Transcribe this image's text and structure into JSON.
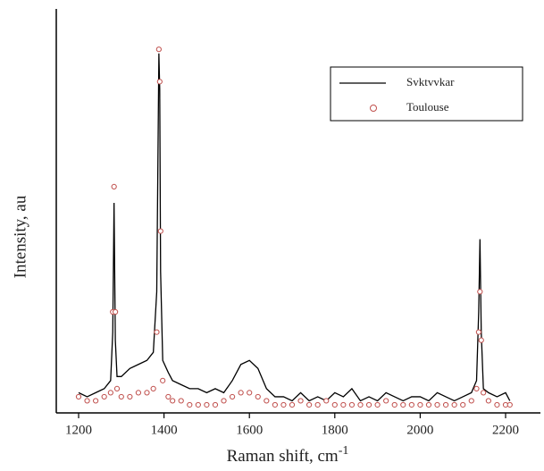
{
  "chart_data": {
    "type": "line_scatter",
    "x_label": "Raman shift, cm",
    "x_label_sup": "-1",
    "y_label": "Intensity, au",
    "x": [
      1200,
      1220,
      1240,
      1260,
      1275,
      1280,
      1283,
      1286,
      1290,
      1300,
      1320,
      1340,
      1360,
      1375,
      1383,
      1388,
      1390,
      1392,
      1397,
      1410,
      1420,
      1440,
      1460,
      1480,
      1500,
      1520,
      1540,
      1560,
      1580,
      1600,
      1620,
      1640,
      1660,
      1680,
      1700,
      1720,
      1740,
      1760,
      1780,
      1800,
      1820,
      1840,
      1860,
      1880,
      1900,
      1920,
      1940,
      1960,
      1980,
      2000,
      2020,
      2040,
      2060,
      2080,
      2100,
      2120,
      2132,
      2137,
      2140,
      2143,
      2148,
      2160,
      2180,
      2200,
      2210
    ],
    "series": [
      {
        "name": "Svktvvkar",
        "kind": "line",
        "color": "#000000",
        "values": [
          5,
          4,
          5,
          6,
          8,
          20,
          52,
          18,
          9,
          9,
          11,
          12,
          13,
          15,
          30,
          89,
          80,
          35,
          13,
          10,
          8,
          7,
          6,
          6,
          5,
          6,
          5,
          8,
          12,
          13,
          11,
          6,
          4,
          4,
          3,
          5,
          3,
          4,
          3,
          5,
          4,
          6,
          3,
          4,
          3,
          5,
          4,
          3,
          4,
          4,
          3,
          5,
          4,
          3,
          4,
          5,
          8,
          25,
          43,
          20,
          6,
          5,
          4,
          5,
          3
        ]
      },
      {
        "name": "Toulouse",
        "kind": "scatter",
        "color": "#c0504d",
        "values": [
          4,
          3,
          3,
          4,
          5,
          25,
          56,
          25,
          6,
          4,
          4,
          5,
          5,
          6,
          20,
          90,
          82,
          45,
          8,
          4,
          3,
          3,
          2,
          2,
          2,
          2,
          3,
          4,
          5,
          5,
          4,
          3,
          2,
          2,
          2,
          3,
          2,
          2,
          3,
          2,
          2,
          2,
          2,
          2,
          2,
          3,
          2,
          2,
          2,
          2,
          2,
          2,
          2,
          2,
          2,
          3,
          6,
          20,
          30,
          18,
          5,
          3,
          2,
          2,
          2
        ]
      }
    ],
    "xlim": [
      1200,
      2200
    ],
    "xticks": [
      1200,
      1400,
      1600,
      1800,
      2000,
      2200
    ],
    "ylim": [
      0,
      100
    ]
  }
}
